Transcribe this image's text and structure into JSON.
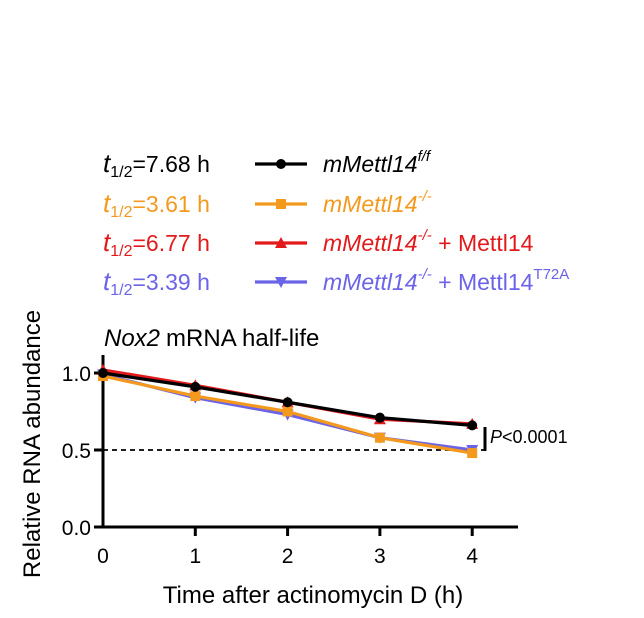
{
  "chart_data": {
    "type": "line",
    "title": {
      "gene": "Nox2",
      "rest": "mRNA half-life"
    },
    "xlabel": "Time after actinomycin D (h)",
    "ylabel": "Relative RNA abundance",
    "x": [
      0,
      1,
      2,
      3,
      4
    ],
    "xlim": [
      0,
      4
    ],
    "ylim": [
      0,
      1.0
    ],
    "xticks": [
      "0",
      "1",
      "2",
      "3",
      "4"
    ],
    "yticks": [
      "0.0",
      "0.5",
      "1.0"
    ],
    "reference_line": {
      "y": 0.5,
      "style": "dashed"
    },
    "annotation": {
      "p": "P",
      "rest": "<0.0001"
    },
    "series": [
      {
        "name": "mMettl14",
        "sup": "f/f",
        "suffix": "",
        "suffix_sup": "",
        "t_half": "=7.68 h",
        "color": "#000000",
        "marker": "circle",
        "values": [
          1.0,
          0.91,
          0.81,
          0.71,
          0.66
        ]
      },
      {
        "name": "mMettl14",
        "sup": "-/-",
        "suffix": "",
        "suffix_sup": "",
        "t_half": "=3.61 h",
        "color": "#f39a1e",
        "marker": "square",
        "values": [
          0.98,
          0.85,
          0.75,
          0.58,
          0.48
        ]
      },
      {
        "name": "mMettl14",
        "sup": "-/-",
        "suffix": " + Mettl14",
        "suffix_sup": "",
        "t_half": "=6.77 h",
        "color": "#e31a1c",
        "marker": "triangle-up",
        "values": [
          1.02,
          0.92,
          0.81,
          0.7,
          0.67
        ]
      },
      {
        "name": "mMettl14",
        "sup": "-/-",
        "suffix": " + Mettl14",
        "suffix_sup": "T72A",
        "t_half": "=3.39 h",
        "color": "#6b63e8",
        "marker": "triangle-down",
        "values": [
          0.99,
          0.84,
          0.73,
          0.58,
          0.5
        ]
      }
    ],
    "legend": {
      "position": "top",
      "t_label": "t",
      "t_sub": "1/2"
    }
  }
}
